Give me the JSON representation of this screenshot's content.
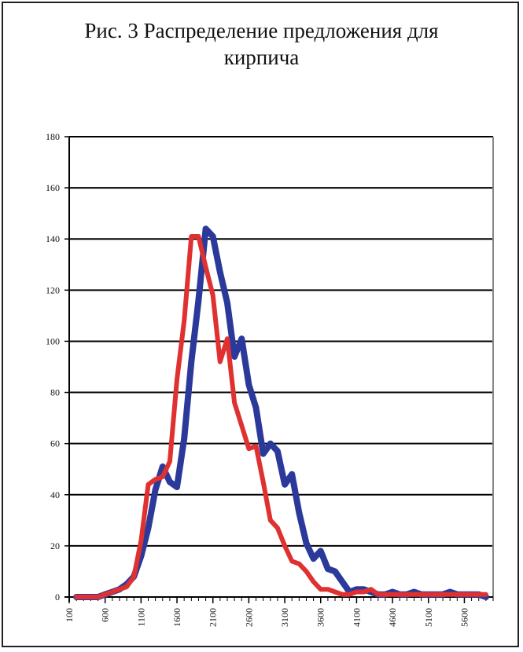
{
  "chart_data": {
    "type": "line",
    "title": "Рис. 3 Распределение предложения для\nкирпича",
    "xlabel": "",
    "ylabel": "",
    "xlim": [
      100,
      6000
    ],
    "ylim": [
      0,
      180
    ],
    "y_ticks": [
      0,
      20,
      40,
      60,
      80,
      100,
      120,
      140,
      160,
      180
    ],
    "x_ticks": [
      100,
      600,
      1100,
      1600,
      2100,
      2600,
      3100,
      3600,
      4100,
      4600,
      5100,
      5600
    ],
    "x_tick_labels": [
      "100",
      "600",
      "1100",
      "1600",
      "2100",
      "2600",
      "3100",
      "3600",
      "4100",
      "4600",
      "5100",
      "5600"
    ],
    "grid": "horizontal",
    "legend": "none",
    "x": [
      200,
      300,
      400,
      500,
      600,
      700,
      800,
      900,
      1000,
      1100,
      1200,
      1300,
      1400,
      1500,
      1600,
      1700,
      1800,
      1900,
      2000,
      2100,
      2200,
      2300,
      2400,
      2500,
      2600,
      2700,
      2800,
      2900,
      3000,
      3100,
      3200,
      3300,
      3400,
      3500,
      3600,
      3700,
      3800,
      3900,
      4000,
      4100,
      4200,
      4300,
      4400,
      4500,
      4600,
      4700,
      4800,
      4900,
      5000,
      5100,
      5200,
      5300,
      5400,
      5500,
      5600,
      5700,
      5800,
      5900
    ],
    "series": [
      {
        "color": "#2b3a9a",
        "values": [
          0,
          0,
          0,
          0,
          1,
          2,
          3,
          5,
          8,
          16,
          27,
          42,
          51,
          45,
          43,
          62,
          92,
          116,
          144,
          141,
          127,
          115,
          94,
          101,
          83,
          74,
          56,
          60,
          57,
          44,
          48,
          33,
          21,
          15,
          18,
          11,
          10,
          6,
          2,
          3,
          3,
          2,
          1,
          1,
          2,
          1,
          1,
          2,
          1,
          1,
          1,
          1,
          2,
          1,
          1,
          1,
          1,
          0
        ]
      },
      {
        "color": "#e03131",
        "values": [
          0,
          0,
          0,
          0,
          1,
          2,
          3,
          4,
          8,
          22,
          44,
          46,
          47,
          53,
          85,
          108,
          141,
          141,
          129,
          118,
          92,
          101,
          76,
          67,
          58,
          59,
          45,
          30,
          27,
          20,
          14,
          13,
          10,
          6,
          3,
          3,
          2,
          1,
          1,
          2,
          2,
          3,
          1,
          1,
          1,
          1,
          1,
          1,
          1,
          1,
          1,
          1,
          1,
          1,
          1,
          1,
          1,
          1
        ]
      }
    ]
  }
}
